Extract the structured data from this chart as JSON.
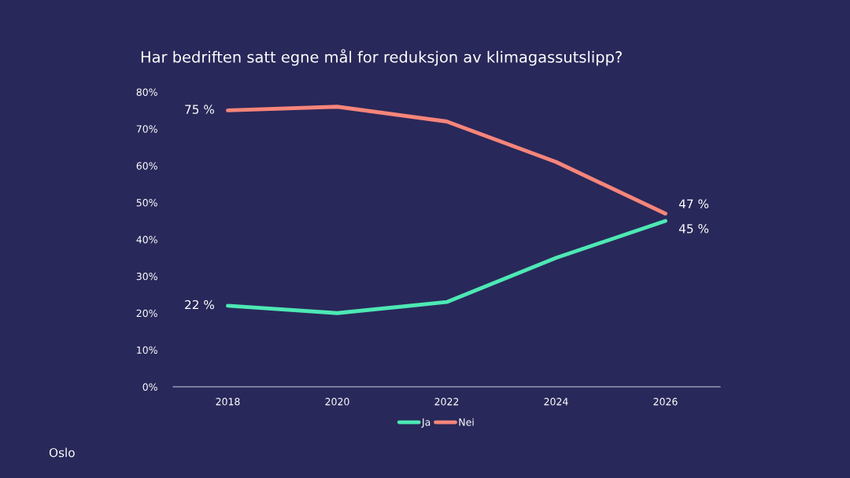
{
  "chart_data": {
    "type": "line",
    "title": "Har bedriften satt egne mål for reduksjon av klimagassutslipp?",
    "x": [
      2018,
      2020,
      2022,
      2024,
      2026
    ],
    "series": [
      {
        "name": "Ja",
        "color": "#4de8b4",
        "values": [
          22,
          20,
          23,
          35,
          45
        ],
        "value_labels": [
          "22 %",
          null,
          null,
          null,
          "45 %"
        ]
      },
      {
        "name": "Nei",
        "color": "#f7857a",
        "values": [
          75,
          76,
          72,
          61,
          47
        ],
        "value_labels": [
          "75 %",
          null,
          null,
          null,
          "47 %"
        ]
      }
    ],
    "xlim": [
      2017,
      2027
    ],
    "xticks": [
      2018,
      2020,
      2022,
      2024,
      2026
    ],
    "ylim": [
      0,
      80
    ],
    "yticks": [
      {
        "value": 0,
        "label": "0%"
      },
      {
        "value": 10,
        "label": "10%"
      },
      {
        "value": 20,
        "label": "20%"
      },
      {
        "value": 30,
        "label": "30%"
      },
      {
        "value": 40,
        "label": "40%"
      },
      {
        "value": 50,
        "label": "50%"
      },
      {
        "value": 60,
        "label": "60%"
      },
      {
        "value": 70,
        "label": "70%"
      },
      {
        "value": 80,
        "label": "80%"
      }
    ],
    "grid": false,
    "legend": "bottom",
    "marker": "none",
    "line_style": "solid",
    "annotations": [
      "Oslo"
    ]
  }
}
